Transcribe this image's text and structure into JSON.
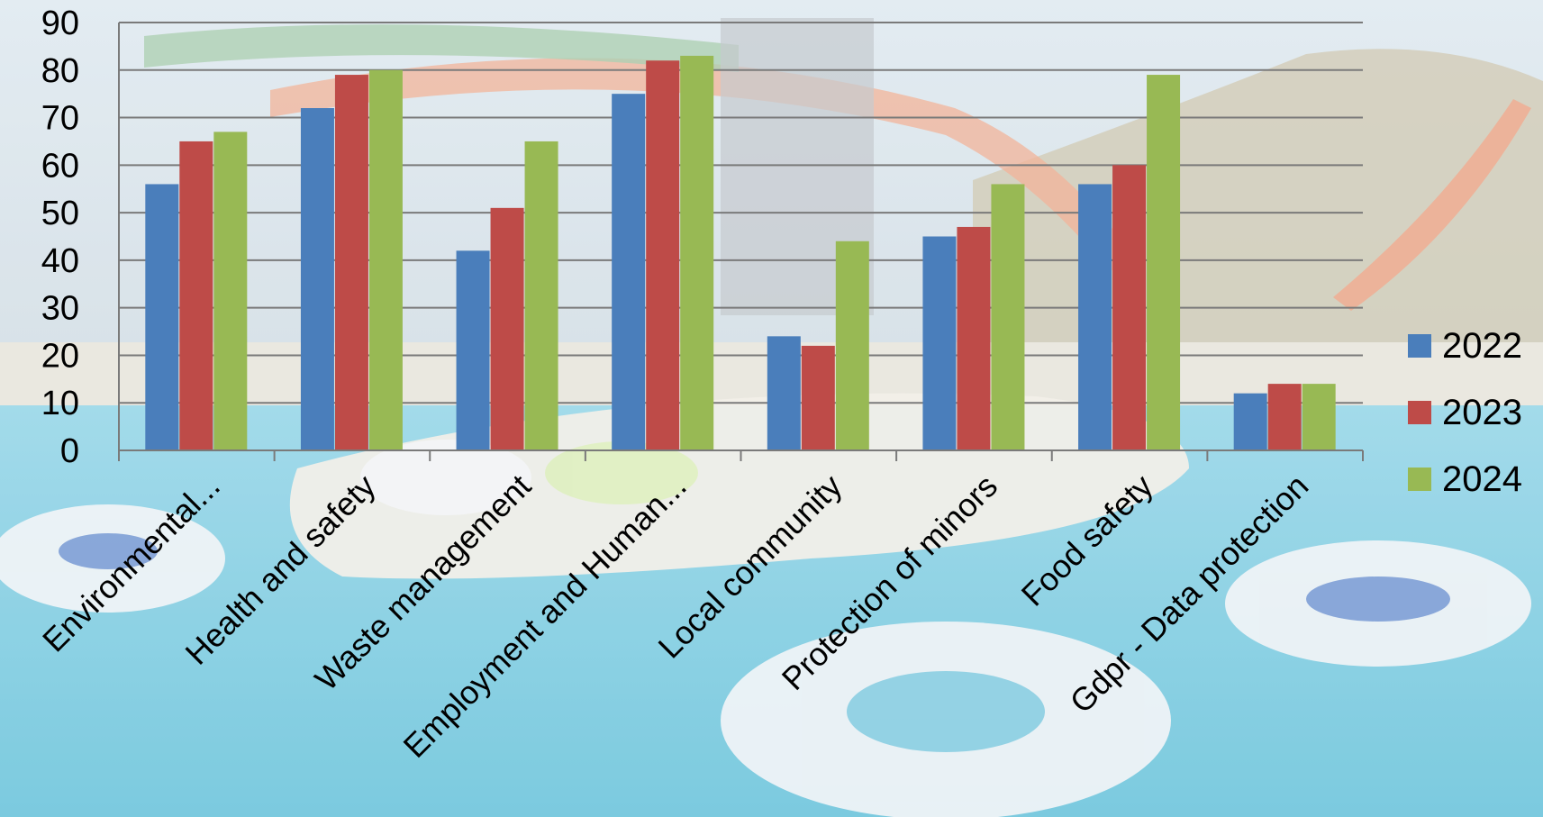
{
  "chart_data": {
    "type": "bar",
    "categories": [
      "Environmental...",
      "Health and safety",
      "Waste management",
      "Employment and Human...",
      "Local community",
      "Protection of minors",
      "Food safety",
      "Gdpr - Data protection"
    ],
    "series": [
      {
        "name": "2022",
        "color": "#4a7ebb",
        "values": [
          56,
          72,
          42,
          75,
          24,
          45,
          56,
          12
        ]
      },
      {
        "name": "2023",
        "color": "#be4b48",
        "values": [
          65,
          79,
          51,
          82,
          22,
          47,
          60,
          14
        ]
      },
      {
        "name": "2024",
        "color": "#98b954",
        "values": [
          67,
          80,
          65,
          83,
          44,
          56,
          79,
          14
        ]
      }
    ],
    "yticks": [
      "0",
      "10",
      "20",
      "30",
      "40",
      "50",
      "60",
      "70",
      "80",
      "90"
    ],
    "ylim": [
      0,
      90
    ],
    "grid": true,
    "legend_position": "right",
    "background": "photo of a water park with slides and a lazy river pool with inflatable tubes"
  }
}
